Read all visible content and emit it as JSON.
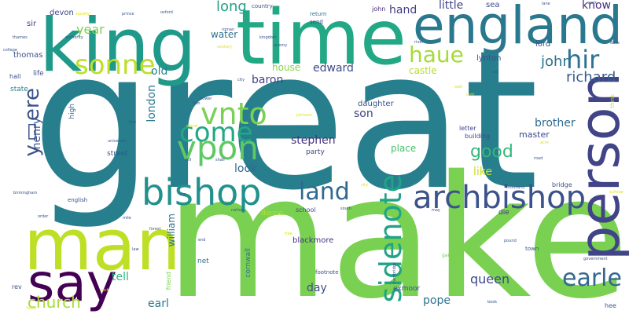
{
  "words": [
    {
      "text": "great",
      "color": "#277f8e"
    },
    {
      "text": "make",
      "color": "#7ad151"
    },
    {
      "text": "man",
      "color": "#bddf26"
    },
    {
      "text": "time",
      "color": "#22a884"
    },
    {
      "text": "king",
      "color": "#1f9a8a"
    },
    {
      "text": "person",
      "color": "#414487"
    },
    {
      "text": "england",
      "color": "#2a788e"
    },
    {
      "text": "say",
      "color": "#440154"
    },
    {
      "text": "bishop",
      "color": "#21918c"
    },
    {
      "text": "archbishop",
      "color": "#3b528b"
    },
    {
      "text": "vpon",
      "color": "#5ec962"
    },
    {
      "text": "vnto",
      "color": "#7ad151"
    },
    {
      "text": "come",
      "color": "#22a884"
    },
    {
      "text": "sidenote",
      "color": "#20a386"
    },
    {
      "text": "sonne",
      "color": "#bddf26"
    },
    {
      "text": "haue",
      "color": "#a5db36"
    },
    {
      "text": "land",
      "color": "#31688e"
    },
    {
      "text": "hir",
      "color": "#2c728e"
    },
    {
      "text": "earle",
      "color": "#31688e"
    },
    {
      "text": "y▯ere",
      "color": "#3b528b"
    },
    {
      "text": "church",
      "color": "#a5db36"
    },
    {
      "text": "good",
      "color": "#35b779"
    },
    {
      "text": "long",
      "color": "#1fa187"
    },
    {
      "text": "john",
      "color": "#2c728e"
    },
    {
      "text": "richard",
      "color": "#365c8d"
    },
    {
      "text": "brother",
      "color": "#31688e"
    },
    {
      "text": "queen",
      "color": "#3e4989"
    },
    {
      "text": "hand",
      "color": "#433e85"
    },
    {
      "text": "little",
      "color": "#404688"
    },
    {
      "text": "edward",
      "color": "#3e4a89"
    },
    {
      "text": "stephen",
      "color": "#46327e"
    },
    {
      "text": "year",
      "color": "#7ad151"
    },
    {
      "text": "london",
      "color": "#2a788e"
    },
    {
      "text": "henry",
      "color": "#3b528b"
    },
    {
      "text": "baron",
      "color": "#414487"
    },
    {
      "text": "old",
      "color": "#26828e"
    },
    {
      "text": "know",
      "color": "#472d7b"
    },
    {
      "text": "tell",
      "color": "#2fb47c"
    },
    {
      "text": "earl",
      "color": "#2a788e"
    },
    {
      "text": "pope",
      "color": "#2c728e"
    },
    {
      "text": "day",
      "color": "#3e4989"
    },
    {
      "text": "son",
      "color": "#414487"
    },
    {
      "text": "like",
      "color": "#c8e020"
    },
    {
      "text": "look",
      "color": "#31688e"
    },
    {
      "text": "water",
      "color": "#2c728e"
    },
    {
      "text": "william",
      "color": "#2c728e"
    },
    {
      "text": "castle",
      "color": "#b5de2b"
    },
    {
      "text": "house",
      "color": "#86d549"
    },
    {
      "text": "place",
      "color": "#4ac16d"
    },
    {
      "text": "master",
      "color": "#3e4989"
    },
    {
      "text": "daughter",
      "color": "#3b528b"
    },
    {
      "text": "sea",
      "color": "#3e4a89"
    },
    {
      "text": "lord",
      "color": "#3b528b"
    },
    {
      "text": "lynton",
      "color": "#3e4989"
    },
    {
      "text": "thomas",
      "color": "#3b528b"
    },
    {
      "text": "devon",
      "color": "#3e4989"
    },
    {
      "text": "sir",
      "color": "#404588"
    },
    {
      "text": "state",
      "color": "#26828e"
    },
    {
      "text": "high",
      "color": "#355f8d"
    },
    {
      "text": "life",
      "color": "#3b528b"
    },
    {
      "text": "hall",
      "color": "#3b528b"
    },
    {
      "text": "street",
      "color": "#3b528b"
    },
    {
      "text": "blackmore",
      "color": "#46327e"
    },
    {
      "text": "exmoor",
      "color": "#3b528b"
    },
    {
      "text": "cornwall",
      "color": "#2c728e"
    },
    {
      "text": "doone",
      "color": "#b5de2b"
    },
    {
      "text": "party",
      "color": "#414487"
    },
    {
      "text": "letter",
      "color": "#3e4989"
    },
    {
      "text": "building",
      "color": "#3e4989"
    },
    {
      "text": "bridge",
      "color": "#3b528b"
    },
    {
      "text": "school",
      "color": "#3e4989"
    },
    {
      "text": "die",
      "color": "#46327e"
    },
    {
      "text": "net",
      "color": "#2c728e"
    },
    {
      "text": "friend",
      "color": "#7ad151"
    },
    {
      "text": "english",
      "color": "#3b528b"
    },
    {
      "text": "country",
      "color": "#3b528b"
    },
    {
      "text": "return",
      "color": "#2c728e"
    },
    {
      "text": "send",
      "color": "#404688"
    },
    {
      "text": "john",
      "color": "#472d7b"
    },
    {
      "text": "footnote",
      "color": "#3b528b"
    },
    {
      "text": "town",
      "color": "#3b528b"
    },
    {
      "text": "hee",
      "color": "#3b528b"
    },
    {
      "text": "rev",
      "color": "#3b528b"
    },
    {
      "text": "think",
      "color": "#cde11d"
    },
    {
      "text": "scholar",
      "color": "#dde318"
    },
    {
      "text": "government",
      "color": "#3b528b"
    },
    {
      "text": "thousand",
      "color": "#3e4989"
    },
    {
      "text": "book",
      "color": "#3b528b"
    },
    {
      "text": "garden",
      "color": "#7ad151"
    },
    {
      "text": "pound",
      "color": "#3b528b"
    },
    {
      "text": "oxford",
      "color": "#3b528b"
    },
    {
      "text": "prince",
      "color": "#3b528b"
    },
    {
      "text": "society",
      "color": "#dde318"
    },
    {
      "text": "lane",
      "color": "#3b528b"
    },
    {
      "text": "work",
      "color": "#3b528b"
    },
    {
      "text": "duke",
      "color": "#3b528b"
    },
    {
      "text": "roman",
      "color": "#3b528b"
    },
    {
      "text": "kingdom",
      "color": "#3b528b"
    },
    {
      "text": "enemy",
      "color": "#3b528b"
    },
    {
      "text": "century",
      "color": "#dde318"
    },
    {
      "text": "river",
      "color": "#3b528b"
    },
    {
      "text": "authority",
      "color": "#3b528b"
    },
    {
      "text": "thames",
      "color": "#3b528b"
    },
    {
      "text": "college",
      "color": "#3b528b"
    },
    {
      "text": "city",
      "color": "#3b528b"
    },
    {
      "text": "power",
      "color": "#3b528b"
    },
    {
      "text": "iron",
      "color": "#3b528b"
    },
    {
      "text": "stand",
      "color": "#dde318"
    },
    {
      "text": "shall",
      "color": "#3b528b"
    },
    {
      "text": "university",
      "color": "#3b528b"
    },
    {
      "text": "johnson",
      "color": "#dde318"
    },
    {
      "text": "vol",
      "color": "#3b528b"
    },
    {
      "text": "wall",
      "color": "#dde318"
    },
    {
      "text": "cost",
      "color": "#dde318"
    },
    {
      "text": "acre",
      "color": "#dde318"
    },
    {
      "text": "road",
      "color": "#3b528b"
    },
    {
      "text": "birmingham",
      "color": "#3b528b"
    },
    {
      "text": "order",
      "color": "#3b528b"
    },
    {
      "text": "mile",
      "color": "#3b528b"
    },
    {
      "text": "forest",
      "color": "#3b528b"
    },
    {
      "text": "nation",
      "color": "#3b528b"
    },
    {
      "text": "south",
      "color": "#3b528b"
    },
    {
      "text": "may",
      "color": "#3b528b"
    },
    {
      "text": "free",
      "color": "#dde318"
    },
    {
      "text": "end",
      "color": "#3b528b"
    },
    {
      "text": "law",
      "color": "#3b528b"
    },
    {
      "text": "cambridge",
      "color": "#3b528b"
    },
    {
      "text": "build",
      "color": "#dde318"
    },
    {
      "text": "inn",
      "color": "#3b528b"
    },
    {
      "text": "hill",
      "color": "#3b528b"
    },
    {
      "text": "boy",
      "color": "#3b528b"
    },
    {
      "text": "rock",
      "color": "#dde318"
    },
    {
      "text": "city",
      "color": "#dde318"
    }
  ]
}
